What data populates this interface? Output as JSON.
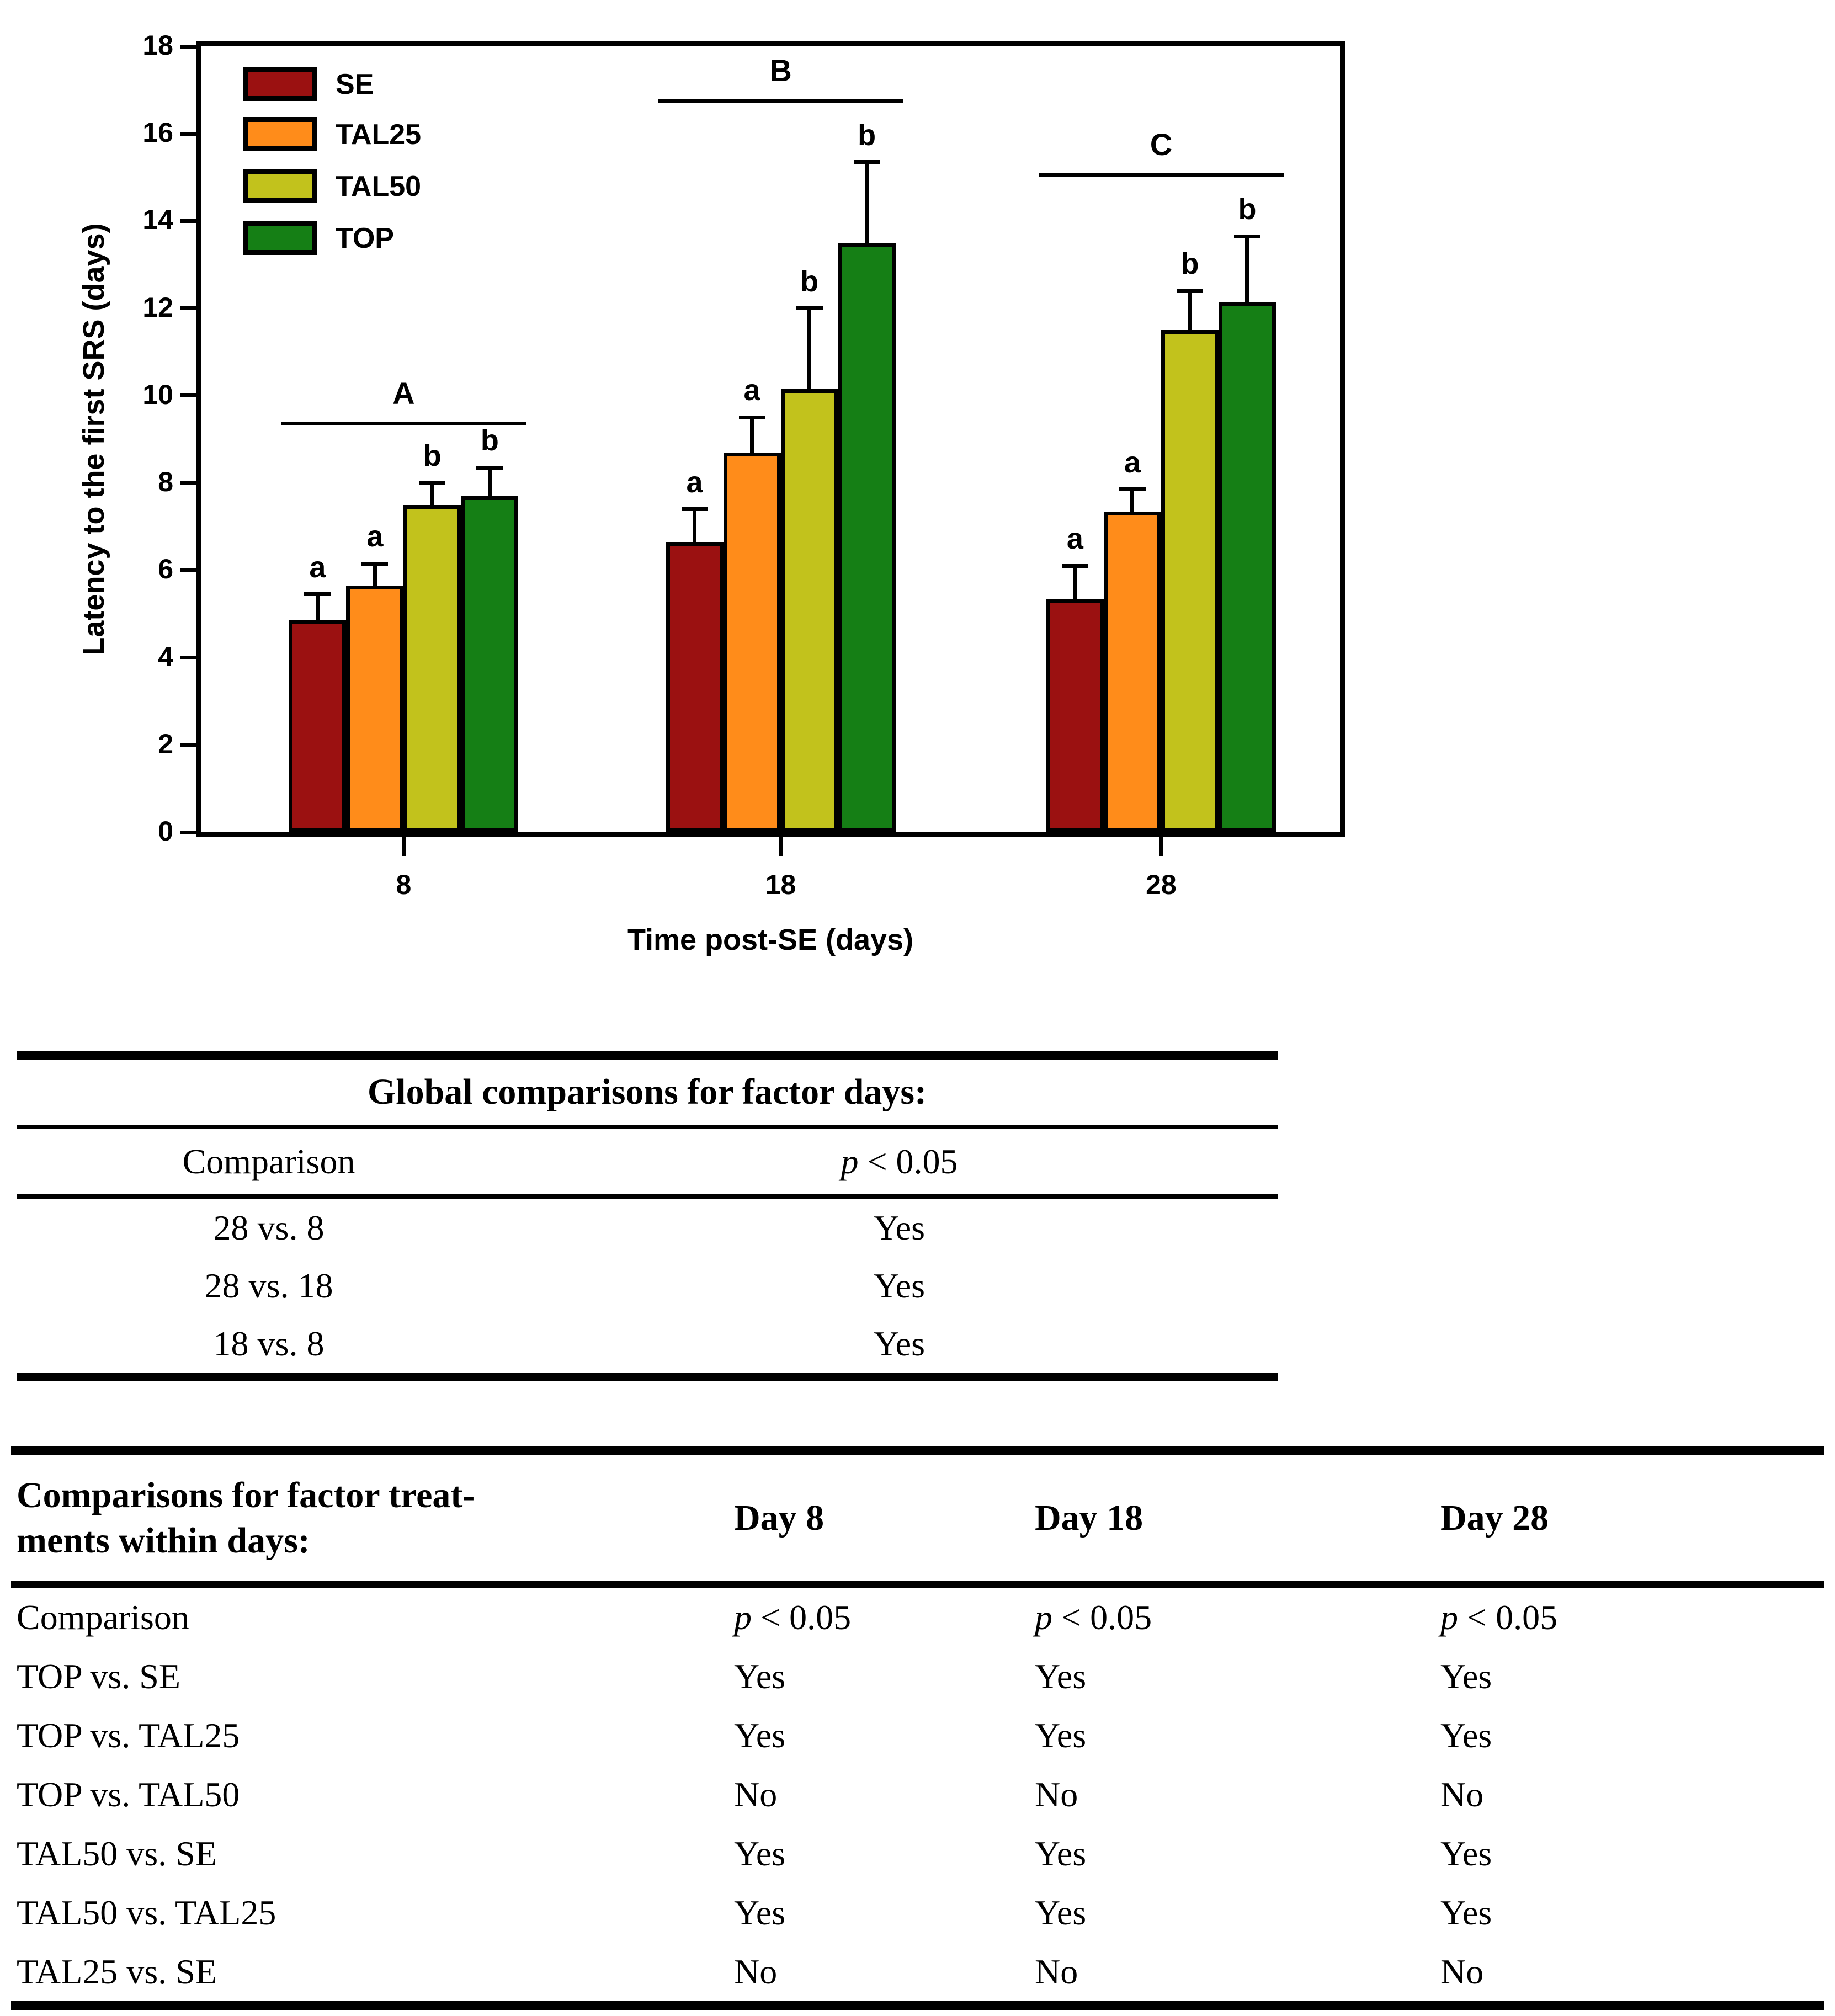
{
  "chart_data": {
    "type": "bar",
    "title": "",
    "xlabel": "Time post-SE (days)",
    "ylabel": "Latency to the first SRS (days)",
    "ylim": [
      0,
      18
    ],
    "ytick_step": 2,
    "grid": false,
    "legend_position": "top-left",
    "categories": [
      "8",
      "18",
      "28"
    ],
    "series": [
      {
        "name": "SE",
        "color": "#9B1111",
        "values": [
          4.85,
          6.65,
          5.35
        ],
        "errors": [
          0.6,
          0.75,
          0.75
        ],
        "letters": [
          "a",
          "a",
          "a"
        ]
      },
      {
        "name": "TAL25",
        "color": "#FF8C1A",
        "values": [
          5.65,
          8.7,
          7.35
        ],
        "errors": [
          0.5,
          0.8,
          0.5
        ],
        "letters": [
          "a",
          "a",
          "a"
        ]
      },
      {
        "name": "TAL50",
        "color": "#C2C21C",
        "values": [
          7.5,
          10.15,
          11.5
        ],
        "errors": [
          0.5,
          1.85,
          0.9
        ],
        "letters": [
          "b",
          "b",
          "b"
        ]
      },
      {
        "name": "TOP",
        "color": "#157F15",
        "values": [
          7.7,
          13.5,
          12.15
        ],
        "errors": [
          0.65,
          1.85,
          1.5
        ],
        "letters": [
          "b",
          "b",
          "b"
        ]
      }
    ],
    "group_lines": [
      {
        "label": "A",
        "y": 9.4
      },
      {
        "label": "B",
        "y": 16.8
      },
      {
        "label": "C",
        "y": 15.1
      }
    ]
  },
  "table1": {
    "title": "Global comparisons for factor days:",
    "col1_header": "Comparison",
    "col2_header": "p < 0.05",
    "rows": [
      [
        "28 vs. 8",
        "Yes"
      ],
      [
        "28 vs. 18",
        "Yes"
      ],
      [
        "18 vs. 8",
        "Yes"
      ]
    ]
  },
  "table2": {
    "header_line1": "Comparisons for factor treat-",
    "header_line2": "ments within days:",
    "day_headers": [
      "Day 8",
      "Day 18",
      "Day 28"
    ],
    "rows": [
      [
        "Comparison",
        "p < 0.05",
        "p < 0.05",
        "p < 0.05"
      ],
      [
        "TOP vs. SE",
        "Yes",
        "Yes",
        "Yes"
      ],
      [
        "TOP vs. TAL25",
        "Yes",
        "Yes",
        "Yes"
      ],
      [
        "TOP vs. TAL50",
        "No",
        "No",
        "No"
      ],
      [
        "TAL50 vs. SE",
        "Yes",
        "Yes",
        "Yes"
      ],
      [
        "TAL50 vs. TAL25",
        "Yes",
        "Yes",
        "Yes"
      ],
      [
        "TAL25 vs. SE",
        "No",
        "No",
        "No"
      ]
    ]
  }
}
